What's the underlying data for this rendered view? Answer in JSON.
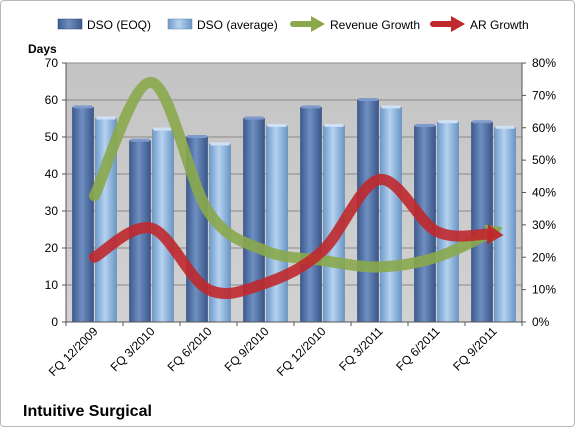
{
  "chart_data": {
    "type": "bar",
    "title": "Intuitive Surgical",
    "ylabel": "Days",
    "ylim": [
      0,
      70
    ],
    "y_ticks": [
      "0",
      "10",
      "20",
      "30",
      "40",
      "50",
      "60",
      "70"
    ],
    "y2lim": [
      0,
      80
    ],
    "y2_ticks": [
      "0%",
      "10%",
      "20%",
      "30%",
      "40%",
      "50%",
      "60%",
      "70%",
      "80%"
    ],
    "categories": [
      "FQ 12/2009",
      "FQ 3/2010",
      "FQ 6/2010",
      "FQ 9/2010",
      "FQ 12/2010",
      "FQ 3/2011",
      "FQ 6/2011",
      "FQ 9/2011"
    ],
    "series": [
      {
        "name": "DSO (EOQ)",
        "type": "bar",
        "axis": "left",
        "color": "#4f6fa3",
        "values": [
          58,
          49,
          50,
          55,
          58,
          60,
          53,
          54
        ]
      },
      {
        "name": "DSO (average)",
        "type": "bar",
        "axis": "left",
        "color": "#8fb4dc",
        "values": [
          55,
          52,
          48,
          53,
          53,
          58,
          54,
          52.5
        ]
      },
      {
        "name": "Revenue Growth",
        "type": "line",
        "axis": "right",
        "color": "#8aa84c",
        "values": [
          39,
          74,
          34,
          22,
          19,
          17,
          20,
          28
        ]
      },
      {
        "name": "AR Growth",
        "type": "line",
        "axis": "right",
        "color": "#c0282c",
        "values": [
          20,
          29,
          10,
          12,
          22,
          44,
          28,
          27
        ]
      }
    ],
    "grid": true,
    "legend_position": "top"
  }
}
